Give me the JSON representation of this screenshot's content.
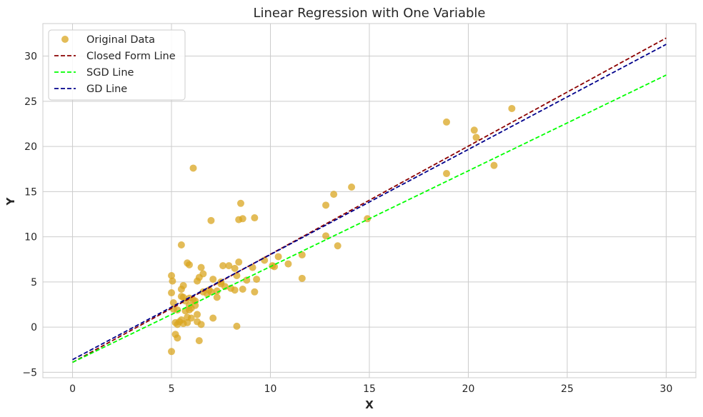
{
  "chart_data": {
    "type": "scatter",
    "title": "Linear Regression with One Variable",
    "xlabel": "X",
    "ylabel": "Y",
    "xlim": [
      -1.5,
      31.5
    ],
    "ylim": [
      -5.6,
      33.6
    ],
    "xticks": [
      0,
      5,
      10,
      15,
      20,
      25,
      30
    ],
    "yticks": [
      -5,
      0,
      5,
      10,
      15,
      20,
      25,
      30
    ],
    "xtick_labels": [
      "0",
      "5",
      "10",
      "15",
      "20",
      "25",
      "30"
    ],
    "ytick_labels": [
      "−5",
      "0",
      "5",
      "10",
      "15",
      "20",
      "25",
      "30"
    ],
    "grid": true,
    "legend_position": "top-left",
    "scatter": {
      "name": "Original Data",
      "color": "#DAA520",
      "points": [
        [
          6.1,
          17.6
        ],
        [
          5.5,
          9.1
        ],
        [
          5.9,
          6.9
        ],
        [
          5.8,
          7.1
        ],
        [
          6.5,
          6.6
        ],
        [
          6.6,
          5.9
        ],
        [
          6.3,
          5.1
        ],
        [
          6.4,
          5.5
        ],
        [
          7.1,
          5.3
        ],
        [
          7.0,
          3.9
        ],
        [
          7.3,
          4.0
        ],
        [
          7.5,
          4.8
        ],
        [
          7.6,
          6.8
        ],
        [
          7.9,
          6.8
        ],
        [
          8.2,
          6.5
        ],
        [
          8.4,
          7.2
        ],
        [
          8.3,
          5.7
        ],
        [
          8.6,
          4.2
        ],
        [
          8.2,
          4.1
        ],
        [
          9.1,
          6.6
        ],
        [
          9.2,
          3.9
        ],
        [
          9.3,
          5.3
        ],
        [
          9.7,
          7.4
        ],
        [
          10.2,
          6.7
        ],
        [
          10.4,
          7.8
        ],
        [
          10.1,
          6.8
        ],
        [
          10.9,
          7.0
        ],
        [
          11.6,
          8.0
        ],
        [
          11.6,
          5.4
        ],
        [
          12.8,
          10.1
        ],
        [
          12.8,
          13.5
        ],
        [
          13.2,
          14.7
        ],
        [
          13.4,
          9.0
        ],
        [
          14.1,
          15.5
        ],
        [
          14.9,
          12.0
        ],
        [
          8.5,
          13.7
        ],
        [
          8.6,
          12.0
        ],
        [
          8.4,
          11.9
        ],
        [
          9.2,
          12.1
        ],
        [
          7.0,
          11.8
        ],
        [
          5.0,
          5.7
        ],
        [
          5.05,
          5.1
        ],
        [
          5.0,
          3.8
        ],
        [
          5.1,
          2.7
        ],
        [
          5.1,
          2.0
        ],
        [
          5.3,
          1.9
        ],
        [
          5.5,
          3.4
        ],
        [
          5.6,
          3.3
        ],
        [
          5.6,
          4.6
        ],
        [
          5.5,
          4.2
        ],
        [
          5.7,
          2.9
        ],
        [
          5.7,
          1.8
        ],
        [
          5.9,
          1.9
        ],
        [
          5.8,
          1.1
        ],
        [
          6.0,
          1.0
        ],
        [
          6.2,
          2.4
        ],
        [
          6.3,
          1.4
        ],
        [
          5.2,
          0.5
        ],
        [
          5.3,
          0.3
        ],
        [
          5.5,
          0.8
        ],
        [
          5.6,
          0.4
        ],
        [
          5.8,
          0.5
        ],
        [
          5.4,
          0.6
        ],
        [
          5.2,
          -0.8
        ],
        [
          5.3,
          -1.2
        ],
        [
          5.0,
          -2.7
        ],
        [
          6.3,
          0.6
        ],
        [
          6.5,
          0.3
        ],
        [
          6.4,
          -1.5
        ],
        [
          7.1,
          1.0
        ],
        [
          8.3,
          0.1
        ],
        [
          6.1,
          3.0
        ],
        [
          6.6,
          3.9
        ],
        [
          6.9,
          4.1
        ],
        [
          7.3,
          3.3
        ],
        [
          7.7,
          4.5
        ],
        [
          7.5,
          5.0
        ],
        [
          8.0,
          4.3
        ],
        [
          8.8,
          5.2
        ],
        [
          6.8,
          3.7
        ],
        [
          5.9,
          3.2
        ],
        [
          6.2,
          2.9
        ],
        [
          5.9,
          2.4
        ],
        [
          6.0,
          2.1
        ],
        [
          18.9,
          22.7
        ],
        [
          20.3,
          21.8
        ],
        [
          20.4,
          21.0
        ],
        [
          22.2,
          24.2
        ],
        [
          18.9,
          17.0
        ],
        [
          21.3,
          17.9
        ]
      ]
    },
    "lines": [
      {
        "name": "Closed Form Line",
        "color": "#8B0000",
        "x": [
          0,
          30
        ],
        "y": [
          -3.9,
          32.0
        ]
      },
      {
        "name": "SGD Line",
        "color": "#00FF00",
        "x": [
          0,
          30
        ],
        "y": [
          -3.9,
          27.9
        ]
      },
      {
        "name": "GD Line",
        "color": "#00008B",
        "x": [
          0,
          30
        ],
        "y": [
          -3.6,
          31.3
        ]
      }
    ]
  }
}
